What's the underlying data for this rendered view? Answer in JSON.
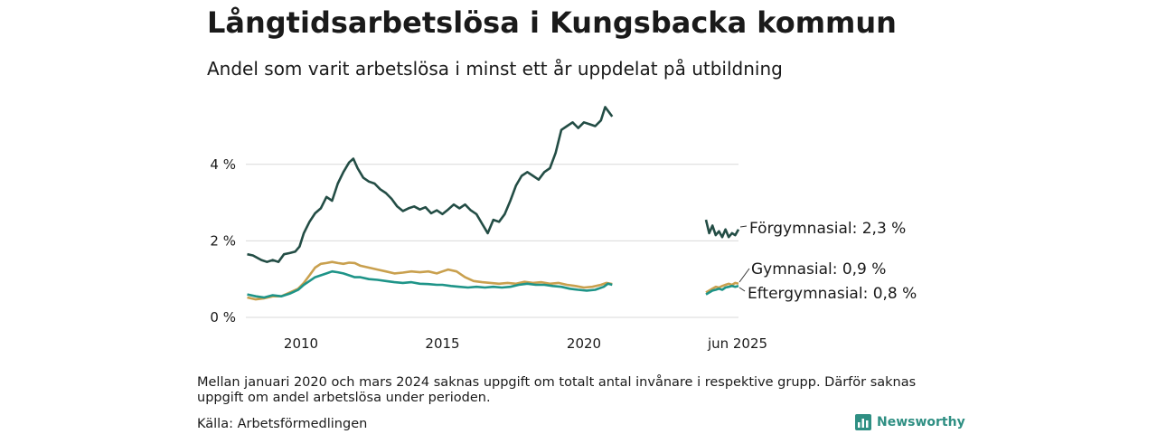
{
  "chart_data": {
    "type": "line",
    "title": "Långtidsarbetslösa i Kungsbacka kommun",
    "subtitle": "Andel som varit arbetslösa i minst ett år uppdelat på utbildning",
    "ylim": [
      0,
      5.6
    ],
    "y_ticks": [
      {
        "value": 0,
        "label": "0 %"
      },
      {
        "value": 2,
        "label": "2 %"
      },
      {
        "value": 4,
        "label": "4 %"
      }
    ],
    "x_ticks": [
      {
        "value": 2010,
        "label": "2010"
      },
      {
        "value": 2015,
        "label": "2015"
      },
      {
        "value": 2020,
        "label": "2020"
      }
    ],
    "recent_period_label": "jun 2025",
    "grid": true,
    "series": [
      {
        "name": "Förgymnasial",
        "end_label": "Förgymnasial: 2,3 %",
        "color": "#234d45",
        "points": [
          [
            2008.1,
            1.65
          ],
          [
            2008.3,
            1.62
          ],
          [
            2008.6,
            1.5
          ],
          [
            2008.8,
            1.45
          ],
          [
            2009.0,
            1.5
          ],
          [
            2009.2,
            1.45
          ],
          [
            2009.4,
            1.65
          ],
          [
            2009.6,
            1.68
          ],
          [
            2009.8,
            1.72
          ],
          [
            2009.95,
            1.85
          ],
          [
            2010.1,
            2.2
          ],
          [
            2010.3,
            2.5
          ],
          [
            2010.5,
            2.72
          ],
          [
            2010.7,
            2.85
          ],
          [
            2010.9,
            3.15
          ],
          [
            2011.1,
            3.05
          ],
          [
            2011.3,
            3.5
          ],
          [
            2011.5,
            3.8
          ],
          [
            2011.7,
            4.05
          ],
          [
            2011.85,
            4.15
          ],
          [
            2012.0,
            3.9
          ],
          [
            2012.2,
            3.65
          ],
          [
            2012.4,
            3.55
          ],
          [
            2012.6,
            3.5
          ],
          [
            2012.8,
            3.35
          ],
          [
            2013.0,
            3.25
          ],
          [
            2013.2,
            3.1
          ],
          [
            2013.4,
            2.9
          ],
          [
            2013.6,
            2.78
          ],
          [
            2013.8,
            2.85
          ],
          [
            2014.0,
            2.9
          ],
          [
            2014.2,
            2.82
          ],
          [
            2014.4,
            2.88
          ],
          [
            2014.6,
            2.72
          ],
          [
            2014.8,
            2.8
          ],
          [
            2015.0,
            2.7
          ],
          [
            2015.2,
            2.82
          ],
          [
            2015.4,
            2.95
          ],
          [
            2015.6,
            2.85
          ],
          [
            2015.8,
            2.95
          ],
          [
            2016.0,
            2.8
          ],
          [
            2016.2,
            2.7
          ],
          [
            2016.4,
            2.45
          ],
          [
            2016.6,
            2.2
          ],
          [
            2016.8,
            2.55
          ],
          [
            2017.0,
            2.5
          ],
          [
            2017.2,
            2.7
          ],
          [
            2017.4,
            3.05
          ],
          [
            2017.6,
            3.45
          ],
          [
            2017.8,
            3.7
          ],
          [
            2018.0,
            3.8
          ],
          [
            2018.2,
            3.7
          ],
          [
            2018.4,
            3.6
          ],
          [
            2018.6,
            3.8
          ],
          [
            2018.8,
            3.9
          ],
          [
            2019.0,
            4.3
          ],
          [
            2019.2,
            4.9
          ],
          [
            2019.4,
            5.0
          ],
          [
            2019.6,
            5.1
          ],
          [
            2019.8,
            4.95
          ],
          [
            2020.0,
            5.1
          ],
          [
            2020.2,
            5.05
          ],
          [
            2020.4,
            5.0
          ],
          [
            2020.6,
            5.15
          ],
          [
            2020.75,
            5.5
          ],
          [
            2020.9,
            5.35
          ],
          [
            2021.0,
            5.25
          ]
        ],
        "recent": [
          2.55,
          2.2,
          2.4,
          2.15,
          2.25,
          2.1,
          2.3,
          2.1,
          2.2,
          2.15,
          2.3
        ]
      },
      {
        "name": "Gymnasial",
        "end_label": "Gymnasial: 0,9 %",
        "color": "#c9a04e",
        "points": [
          [
            2008.1,
            0.52
          ],
          [
            2008.4,
            0.47
          ],
          [
            2008.7,
            0.5
          ],
          [
            2009.0,
            0.55
          ],
          [
            2009.3,
            0.55
          ],
          [
            2009.6,
            0.65
          ],
          [
            2009.9,
            0.75
          ],
          [
            2010.1,
            0.9
          ],
          [
            2010.3,
            1.1
          ],
          [
            2010.5,
            1.3
          ],
          [
            2010.7,
            1.4
          ],
          [
            2010.9,
            1.42
          ],
          [
            2011.1,
            1.45
          ],
          [
            2011.3,
            1.42
          ],
          [
            2011.5,
            1.4
          ],
          [
            2011.7,
            1.43
          ],
          [
            2011.9,
            1.42
          ],
          [
            2012.1,
            1.35
          ],
          [
            2012.4,
            1.3
          ],
          [
            2012.7,
            1.25
          ],
          [
            2013.0,
            1.2
          ],
          [
            2013.3,
            1.15
          ],
          [
            2013.6,
            1.17
          ],
          [
            2013.9,
            1.2
          ],
          [
            2014.2,
            1.18
          ],
          [
            2014.5,
            1.2
          ],
          [
            2014.8,
            1.15
          ],
          [
            2015.0,
            1.2
          ],
          [
            2015.2,
            1.25
          ],
          [
            2015.5,
            1.2
          ],
          [
            2015.8,
            1.05
          ],
          [
            2016.1,
            0.95
          ],
          [
            2016.4,
            0.92
          ],
          [
            2016.7,
            0.9
          ],
          [
            2017.0,
            0.88
          ],
          [
            2017.3,
            0.9
          ],
          [
            2017.6,
            0.88
          ],
          [
            2017.9,
            0.93
          ],
          [
            2018.2,
            0.9
          ],
          [
            2018.5,
            0.92
          ],
          [
            2018.8,
            0.88
          ],
          [
            2019.1,
            0.9
          ],
          [
            2019.4,
            0.85
          ],
          [
            2019.7,
            0.82
          ],
          [
            2020.0,
            0.78
          ],
          [
            2020.3,
            0.8
          ],
          [
            2020.6,
            0.85
          ],
          [
            2020.8,
            0.9
          ],
          [
            2021.0,
            0.87
          ]
        ],
        "recent": [
          0.65,
          0.7,
          0.75,
          0.8,
          0.78,
          0.82,
          0.85,
          0.88,
          0.85,
          0.9,
          0.88
        ]
      },
      {
        "name": "Eftergymnasial",
        "end_label": "Eftergymnasial: 0,8 %",
        "color": "#1e9488",
        "points": [
          [
            2008.1,
            0.6
          ],
          [
            2008.4,
            0.55
          ],
          [
            2008.7,
            0.52
          ],
          [
            2009.0,
            0.58
          ],
          [
            2009.3,
            0.55
          ],
          [
            2009.6,
            0.62
          ],
          [
            2009.9,
            0.72
          ],
          [
            2010.1,
            0.85
          ],
          [
            2010.3,
            0.95
          ],
          [
            2010.5,
            1.05
          ],
          [
            2010.7,
            1.1
          ],
          [
            2010.9,
            1.15
          ],
          [
            2011.1,
            1.2
          ],
          [
            2011.3,
            1.18
          ],
          [
            2011.5,
            1.15
          ],
          [
            2011.7,
            1.1
          ],
          [
            2011.9,
            1.05
          ],
          [
            2012.1,
            1.05
          ],
          [
            2012.4,
            1.0
          ],
          [
            2012.7,
            0.98
          ],
          [
            2013.0,
            0.95
          ],
          [
            2013.3,
            0.92
          ],
          [
            2013.6,
            0.9
          ],
          [
            2013.9,
            0.92
          ],
          [
            2014.2,
            0.88
          ],
          [
            2014.5,
            0.87
          ],
          [
            2014.8,
            0.85
          ],
          [
            2015.0,
            0.85
          ],
          [
            2015.3,
            0.82
          ],
          [
            2015.6,
            0.8
          ],
          [
            2015.9,
            0.78
          ],
          [
            2016.2,
            0.8
          ],
          [
            2016.5,
            0.78
          ],
          [
            2016.8,
            0.8
          ],
          [
            2017.1,
            0.78
          ],
          [
            2017.4,
            0.8
          ],
          [
            2017.7,
            0.85
          ],
          [
            2018.0,
            0.88
          ],
          [
            2018.3,
            0.85
          ],
          [
            2018.6,
            0.85
          ],
          [
            2018.9,
            0.82
          ],
          [
            2019.2,
            0.8
          ],
          [
            2019.5,
            0.75
          ],
          [
            2019.8,
            0.72
          ],
          [
            2020.1,
            0.7
          ],
          [
            2020.4,
            0.72
          ],
          [
            2020.7,
            0.8
          ],
          [
            2020.85,
            0.88
          ],
          [
            2021.0,
            0.85
          ]
        ],
        "recent": [
          0.6,
          0.65,
          0.7,
          0.72,
          0.75,
          0.72,
          0.78,
          0.8,
          0.82,
          0.8,
          0.82
        ]
      }
    ]
  },
  "note": "Mellan januari 2020 och mars 2024 saknas uppgift om totalt antal invånare i respektive grupp. Därför saknas uppgift om andel arbetslösa under perioden.",
  "source": "Källa: Arbetsförmedlingen",
  "brand": {
    "name": "Newsworthy",
    "icon": "bar-chart-logo-icon",
    "color": "#2f8f83"
  }
}
